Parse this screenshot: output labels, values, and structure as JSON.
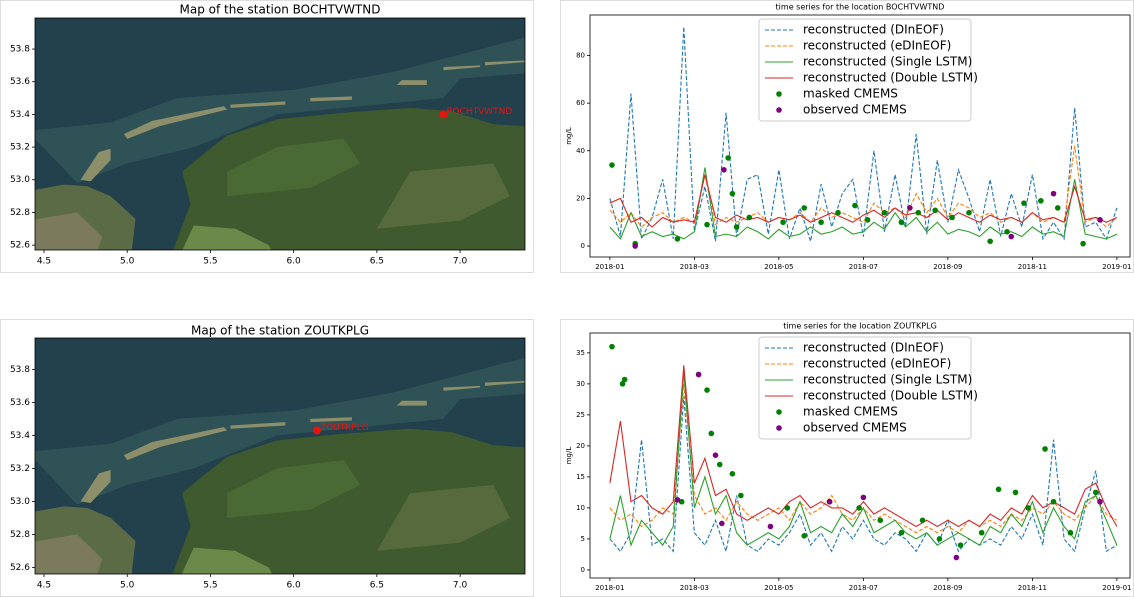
{
  "chart_data": [
    {
      "type": "map",
      "title": "Map of the station BOCHTVWTND",
      "xlim": [
        4.446,
        7.39
      ],
      "ylim": [
        52.57,
        53.99
      ],
      "xticks": [
        4.5,
        {
          "value": 5,
          "label": "5.0"
        },
        5.5,
        {
          "value": 6,
          "label": "6.0"
        },
        6.5,
        {
          "value": 7,
          "label": "7.0"
        }
      ],
      "yticks": [
        53.8,
        53.6,
        53.4,
        53.2,
        {
          "value": 53,
          "label": "53.0"
        },
        52.8,
        52.6
      ],
      "station": {
        "name": "BOCHTVWTND",
        "lon": 6.9,
        "lat": 53.4,
        "color": "#e8130f"
      }
    },
    {
      "type": "line",
      "title": "time series for the location BOCHTVWTND",
      "y_label": "mg/L",
      "xlim": [
        -0.47,
        12.31
      ],
      "ylim": [
        -4.6,
        97
      ],
      "xticks": [
        {
          "value": 0,
          "label": "2018-01"
        },
        {
          "value": 2,
          "label": "2018-03"
        },
        {
          "value": 4,
          "label": "2018-05"
        },
        {
          "value": 6,
          "label": "2018-07"
        },
        {
          "value": 8,
          "label": "2018-09"
        },
        {
          "value": 10,
          "label": "2018-11"
        },
        {
          "value": 12,
          "label": "2019-01"
        }
      ],
      "yticks": [
        0,
        20,
        40,
        60,
        80
      ],
      "legend": "upper center",
      "x": [
        0,
        0.25,
        0.5,
        0.75,
        1,
        1.25,
        1.5,
        1.75,
        2,
        2.25,
        2.5,
        2.75,
        3,
        3.25,
        3.5,
        3.75,
        4,
        4.25,
        4.5,
        4.75,
        5,
        5.25,
        5.5,
        5.75,
        6,
        6.25,
        6.5,
        6.75,
        7,
        7.25,
        7.5,
        7.75,
        8,
        8.25,
        8.5,
        8.75,
        9,
        9.25,
        9.5,
        9.75,
        10,
        10.25,
        10.5,
        10.75,
        11,
        11.25,
        11.5,
        11.75,
        12
      ],
      "series": [
        {
          "name": "reconstructed (DInEOF)",
          "color": "#1f77b4",
          "dash": true,
          "values": [
            20,
            4,
            64,
            3,
            12,
            28,
            3,
            92,
            6,
            25,
            2,
            56,
            4,
            28,
            30,
            5,
            32,
            3,
            16,
            2,
            26,
            8,
            22,
            28,
            4,
            40,
            6,
            30,
            8,
            47,
            5,
            36,
            10,
            32,
            20,
            6,
            28,
            4,
            22,
            8,
            30,
            3,
            10,
            3,
            58,
            8,
            10,
            3,
            16
          ]
        },
        {
          "name": "reconstructed (eDInEOF)",
          "color": "#ff7f0e",
          "dash": true,
          "values": [
            15,
            10,
            14,
            8,
            12,
            14,
            10,
            12,
            10,
            30,
            9,
            12,
            10,
            12,
            14,
            10,
            12,
            11,
            14,
            10,
            16,
            12,
            14,
            12,
            10,
            18,
            14,
            16,
            12,
            22,
            14,
            20,
            12,
            18,
            16,
            12,
            14,
            10,
            12,
            10,
            14,
            10,
            12,
            10,
            42,
            10,
            12,
            8,
            12
          ]
        },
        {
          "name": "reconstructed (Single LSTM)",
          "color": "#2ca02c",
          "values": [
            8,
            3,
            14,
            4,
            6,
            4,
            5,
            3,
            6,
            33,
            4,
            5,
            4,
            8,
            6,
            3,
            7,
            4,
            5,
            8,
            5,
            6,
            8,
            5,
            6,
            10,
            7,
            14,
            8,
            12,
            6,
            10,
            5,
            7,
            6,
            4,
            8,
            5,
            6,
            4,
            8,
            5,
            6,
            4,
            28,
            5,
            4,
            3,
            5
          ]
        },
        {
          "name": "reconstructed (Double LSTM)",
          "color": "#d62728",
          "values": [
            18,
            20,
            10,
            12,
            8,
            12,
            10,
            11,
            10,
            30,
            12,
            10,
            13,
            11,
            12,
            10,
            12,
            11,
            13,
            10,
            12,
            14,
            12,
            10,
            13,
            15,
            12,
            16,
            13,
            14,
            12,
            15,
            11,
            14,
            12,
            10,
            13,
            11,
            12,
            10,
            14,
            11,
            12,
            10,
            25,
            11,
            12,
            10,
            12
          ]
        },
        {
          "name": "masked CMEMS",
          "color": "#008000",
          "type": "scatter",
          "x": [
            0.05,
            0.6,
            1.6,
            2.3,
            2.8,
            2.9,
            3.0,
            3.3,
            4.1,
            4.6,
            5.0,
            5.4,
            5.8,
            6.1,
            6.5,
            6.9,
            7.3,
            7.7,
            8.1,
            8.5,
            9.0,
            9.4,
            9.8,
            10.2,
            10.6,
            11.2
          ],
          "values": [
            34,
            1,
            3,
            9,
            37,
            22,
            8,
            12,
            10,
            16,
            10,
            14,
            17,
            11,
            14,
            10,
            14,
            15,
            12,
            14,
            2,
            6,
            18,
            19,
            16,
            1
          ]
        },
        {
          "name": "observed CMEMS",
          "color": "#800080",
          "type": "scatter",
          "x": [
            0.6,
            2.7,
            7.1,
            9.5,
            10.5,
            11.6
          ],
          "values": [
            0,
            32,
            16,
            4,
            22,
            11
          ]
        }
      ]
    },
    {
      "type": "map",
      "title": "Map of the station ZOUTKPLG",
      "xlim": [
        4.446,
        7.39
      ],
      "ylim": [
        52.56,
        53.99
      ],
      "xticks": [
        4.5,
        {
          "value": 5,
          "label": "5.0"
        },
        5.5,
        {
          "value": 6,
          "label": "6.0"
        },
        6.5,
        {
          "value": 7,
          "label": "7.0"
        }
      ],
      "yticks": [
        53.8,
        53.6,
        53.4,
        53.2,
        {
          "value": 53,
          "label": "53.0"
        },
        52.8,
        52.6
      ],
      "station": {
        "name": "ZOUTKPLG",
        "lon": 6.14,
        "lat": 53.43,
        "color": "#e8130f"
      }
    },
    {
      "type": "line",
      "title": "time series for the location ZOUTKPLG",
      "y_label": "mg/L",
      "xlim": [
        -0.47,
        12.31
      ],
      "ylim": [
        -1.3,
        38.2
      ],
      "xticks": [
        {
          "value": 0,
          "label": "2018-01"
        },
        {
          "value": 2,
          "label": "2018-03"
        },
        {
          "value": 4,
          "label": "2018-05"
        },
        {
          "value": 6,
          "label": "2018-07"
        },
        {
          "value": 8,
          "label": "2018-09"
        },
        {
          "value": 10,
          "label": "2018-11"
        },
        {
          "value": 12,
          "label": "2019-01"
        }
      ],
      "yticks": [
        0,
        5,
        10,
        15,
        20,
        25,
        30,
        35
      ],
      "legend": "upper center",
      "x": [
        0,
        0.25,
        0.5,
        0.75,
        1,
        1.25,
        1.5,
        1.75,
        2,
        2.25,
        2.5,
        2.75,
        3,
        3.25,
        3.5,
        3.75,
        4,
        4.25,
        4.5,
        4.75,
        5,
        5.25,
        5.5,
        5.75,
        6,
        6.25,
        6.5,
        6.75,
        7,
        7.25,
        7.5,
        7.75,
        8,
        8.25,
        8.5,
        8.75,
        9,
        9.25,
        9.5,
        9.75,
        10,
        10.25,
        10.5,
        10.75,
        11,
        11.25,
        11.5,
        11.75,
        12
      ],
      "series": [
        {
          "name": "reconstructed (DInEOF)",
          "color": "#1f77b4",
          "dash": true,
          "values": [
            5,
            3,
            6,
            21,
            4,
            5,
            3,
            28,
            6,
            4,
            8,
            3,
            12,
            4,
            3,
            5,
            4,
            6,
            9,
            4,
            6,
            3,
            7,
            5,
            8,
            5,
            4,
            6,
            5,
            3,
            6,
            4,
            8,
            3,
            5,
            4,
            5,
            4,
            7,
            5,
            9,
            4,
            21,
            5,
            3,
            10,
            16,
            3,
            4
          ]
        },
        {
          "name": "reconstructed (eDInEOF)",
          "color": "#ff7f0e",
          "dash": true,
          "values": [
            10,
            8,
            9,
            7,
            8,
            10,
            9,
            30,
            12,
            9,
            10,
            8,
            11,
            9,
            8,
            9,
            10,
            8,
            11,
            9,
            10,
            12,
            9,
            8,
            10,
            8,
            9,
            8,
            7,
            6,
            7,
            6,
            7,
            6,
            8,
            7,
            8,
            7,
            9,
            8,
            10,
            9,
            11,
            9,
            8,
            10,
            12,
            9,
            8
          ]
        },
        {
          "name": "reconstructed (Single LSTM)",
          "color": "#2ca02c",
          "values": [
            5,
            12,
            4,
            8,
            6,
            4,
            7,
            32,
            10,
            15,
            9,
            12,
            6,
            4,
            5,
            6,
            5,
            7,
            11,
            6,
            7,
            6,
            9,
            7,
            10,
            6,
            7,
            8,
            6,
            5,
            6,
            4,
            5,
            6,
            5,
            4,
            7,
            6,
            9,
            7,
            11,
            6,
            10,
            7,
            5,
            11,
            12,
            8,
            4
          ]
        },
        {
          "name": "reconstructed (Double LSTM)",
          "color": "#d62728",
          "values": [
            14,
            24,
            11,
            12,
            10,
            9,
            11,
            33,
            14,
            18,
            12,
            13,
            9,
            8,
            9,
            10,
            9,
            11,
            12,
            10,
            11,
            10,
            10,
            9,
            11,
            9,
            10,
            9,
            8,
            7,
            8,
            7,
            8,
            7,
            8,
            7,
            9,
            8,
            10,
            9,
            12,
            10,
            11,
            10,
            9,
            13,
            14,
            10,
            7
          ]
        },
        {
          "name": "masked CMEMS",
          "color": "#008000",
          "type": "scatter",
          "x": [
            0.05,
            0.3,
            0.35,
            1.7,
            2.1,
            2.3,
            2.4,
            2.6,
            2.9,
            3.1,
            4.2,
            4.6,
            5.2,
            5.9,
            6.4,
            6.9,
            7.4,
            7.8,
            8.3,
            8.8,
            9.2,
            9.6,
            9.9,
            10.3,
            10.5,
            10.9,
            11.5
          ],
          "values": [
            36,
            30,
            30.7,
            11,
            31.5,
            29,
            22,
            17,
            15.5,
            12,
            10,
            5.5,
            11,
            10,
            8,
            6,
            8,
            5,
            4,
            6,
            13,
            12.5,
            10,
            19.5,
            11,
            6,
            12.5
          ]
        },
        {
          "name": "observed CMEMS",
          "color": "#800080",
          "type": "scatter",
          "x": [
            1.6,
            2.1,
            2.5,
            2.65,
            3.8,
            5.2,
            6.0,
            8.2,
            11.6
          ],
          "values": [
            11.3,
            31.5,
            18.5,
            7.5,
            7,
            11,
            11.7,
            2,
            11
          ]
        }
      ]
    }
  ]
}
